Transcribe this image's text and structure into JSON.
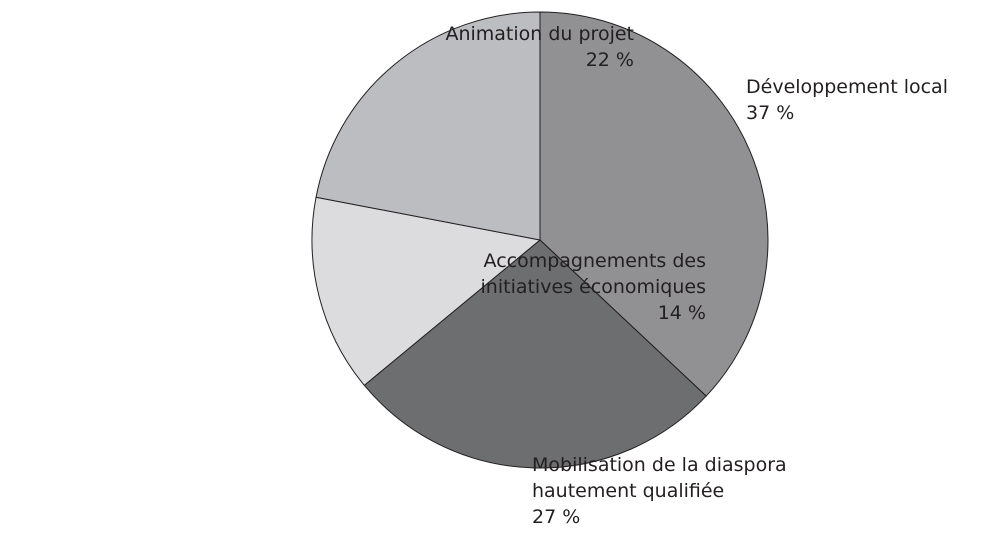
{
  "chart_data": {
    "type": "pie",
    "categories": [
      "Développement local",
      "Mobilisation de la diaspora hautement qualifiée",
      "Accompagnements des initiatives économiques",
      "Animation du projet"
    ],
    "values": [
      37,
      27,
      14,
      22
    ],
    "value_labels": [
      "37 %",
      "27 %",
      "14 %",
      "22 %"
    ],
    "colors": [
      "#919193",
      "#6d6e70",
      "#dcdcde",
      "#bcbdc0"
    ]
  }
}
